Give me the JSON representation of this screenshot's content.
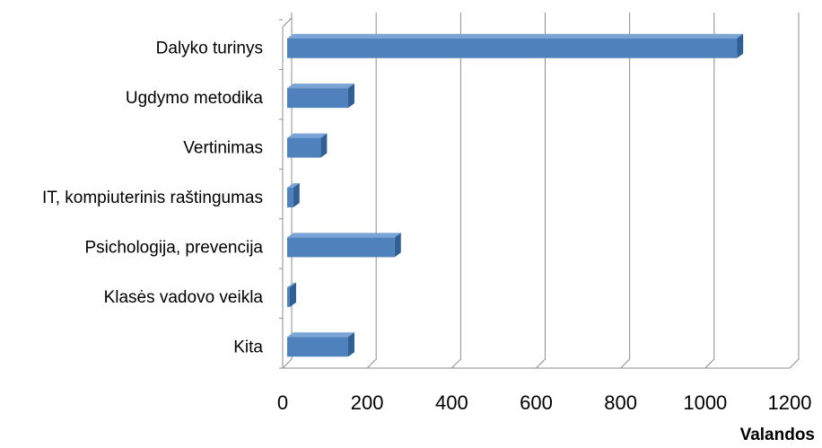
{
  "chart_data": {
    "type": "bar",
    "orientation": "horizontal",
    "categories": [
      "Dalyko turinys",
      "Ugdymo metodika",
      "Vertinimas",
      "IT, kompiuterinis raštingumas",
      "Psichologija, prevencija",
      "Klasės vadovo veikla",
      "Kita"
    ],
    "values": [
      1075,
      155,
      90,
      25,
      265,
      5,
      155
    ],
    "xlabel": "Valandos",
    "xlim": [
      0,
      1200
    ],
    "xticks": [
      "0",
      "200",
      "400",
      "600",
      "800",
      "1000",
      "1200"
    ],
    "grid": true,
    "legend": "none",
    "bar_color": "#4f81bd",
    "bar_side_color": "#2f5f94",
    "bar_top_color": "#7aa3d6"
  }
}
